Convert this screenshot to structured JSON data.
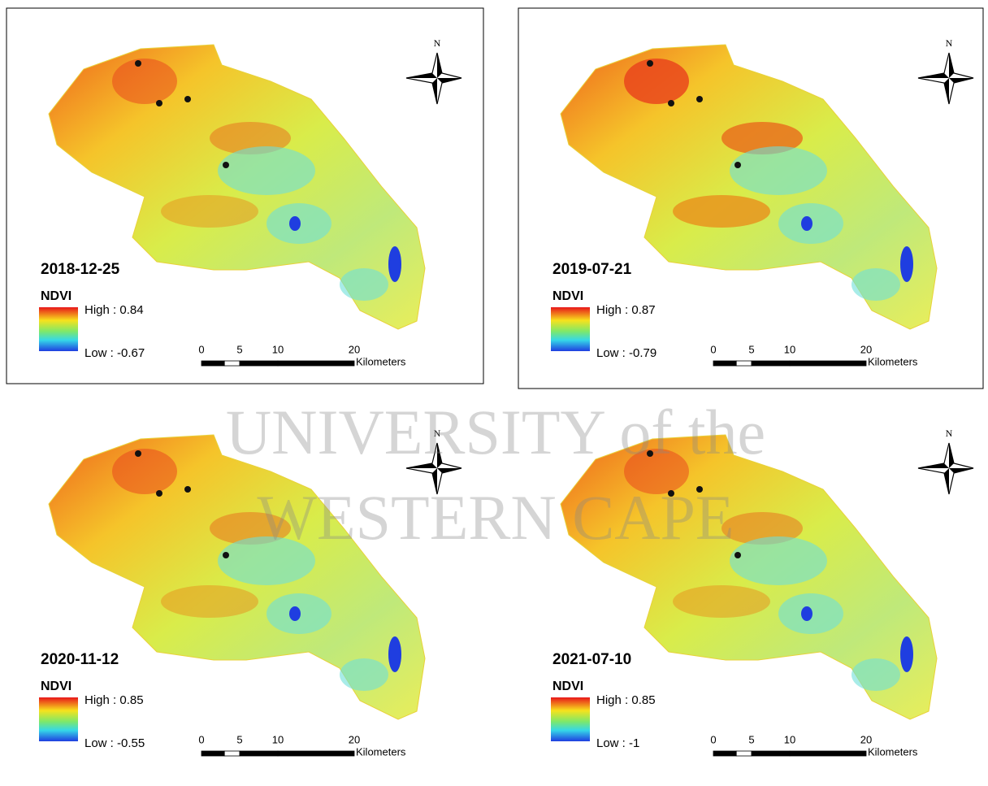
{
  "panels": [
    {
      "date": "2018-12-25",
      "legend_title": "NDVI",
      "high": "High : 0.84",
      "low": "Low : -0.67",
      "north": "N",
      "scale_labels": [
        "0",
        "5",
        "10",
        "20"
      ],
      "scale_unit": "Kilometers"
    },
    {
      "date": "2019-07-21",
      "legend_title": "NDVI",
      "high": "High : 0.87",
      "low": "Low : -0.79",
      "north": "N",
      "scale_labels": [
        "0",
        "5",
        "10",
        "20"
      ],
      "scale_unit": "Kilometers"
    },
    {
      "date": "2020-11-12",
      "legend_title": "NDVI",
      "high": "High : 0.85",
      "low": "Low : -0.55",
      "north": "N",
      "scale_labels": [
        "0",
        "5",
        "10",
        "20"
      ],
      "scale_unit": "Kilometers"
    },
    {
      "date": "2021-07-10",
      "legend_title": "NDVI",
      "high": "High : 0.85",
      "low": "Low : -1",
      "north": "N",
      "scale_labels": [
        "0",
        "5",
        "10",
        "20"
      ],
      "scale_unit": "Kilometers"
    }
  ],
  "watermark": {
    "line1": "UNIVERSITY of the",
    "line2": "WESTERN CAPE"
  }
}
